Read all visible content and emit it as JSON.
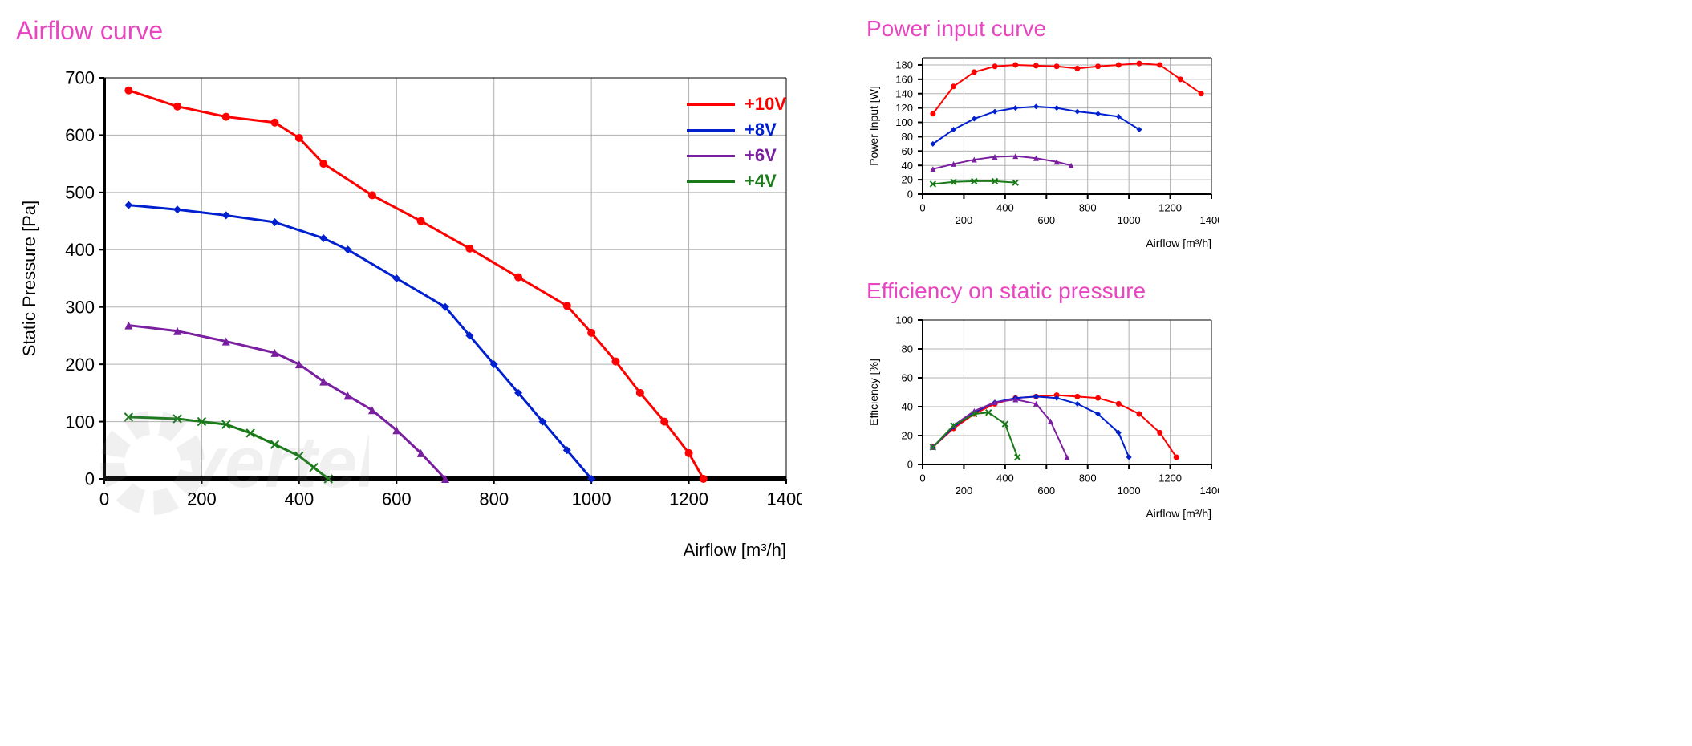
{
  "colors": {
    "title": "#e845c0",
    "axis": "#000000",
    "grid": "#b0b0b0",
    "background": "#ffffff",
    "series": {
      "10V": "#ff0000",
      "8V": "#0020d0",
      "6V": "#7a1fa0",
      "4V": "#1a7a1a"
    }
  },
  "legend": {
    "items": [
      {
        "label": "+10V",
        "color": "#ff0000"
      },
      {
        "label": "+8V",
        "color": "#0020d0"
      },
      {
        "label": "+6V",
        "color": "#7a1fa0"
      },
      {
        "label": "+4V",
        "color": "#1a7a1a"
      }
    ],
    "fontsize": 22
  },
  "airflow_chart": {
    "title": "Airflow curve",
    "type": "line",
    "xlabel": "Airflow [m³/h]",
    "ylabel": "Static Pressure [Pa]",
    "xlim": [
      0,
      1400
    ],
    "ylim": [
      0,
      700
    ],
    "xtick_step": 200,
    "ytick_step": 100,
    "title_fontsize": 32,
    "label_fontsize": 22,
    "tick_fontsize": 22,
    "line_width": 3,
    "marker_size": 5,
    "grid_color": "#b0b0b0",
    "background_color": "#ffffff",
    "series": [
      {
        "name": "+10V",
        "color": "#ff0000",
        "marker": "circle",
        "points": [
          [
            50,
            678
          ],
          [
            150,
            650
          ],
          [
            250,
            632
          ],
          [
            350,
            622
          ],
          [
            400,
            595
          ],
          [
            450,
            550
          ],
          [
            550,
            495
          ],
          [
            650,
            450
          ],
          [
            750,
            402
          ],
          [
            850,
            352
          ],
          [
            950,
            302
          ],
          [
            1000,
            255
          ],
          [
            1050,
            205
          ],
          [
            1100,
            150
          ],
          [
            1150,
            100
          ],
          [
            1200,
            45
          ],
          [
            1230,
            0
          ]
        ]
      },
      {
        "name": "+8V",
        "color": "#0020d0",
        "marker": "diamond",
        "points": [
          [
            50,
            478
          ],
          [
            150,
            470
          ],
          [
            250,
            460
          ],
          [
            350,
            448
          ],
          [
            450,
            420
          ],
          [
            500,
            400
          ],
          [
            600,
            350
          ],
          [
            700,
            300
          ],
          [
            750,
            250
          ],
          [
            800,
            200
          ],
          [
            850,
            150
          ],
          [
            900,
            100
          ],
          [
            950,
            50
          ],
          [
            1000,
            0
          ]
        ]
      },
      {
        "name": "+6V",
        "color": "#7a1fa0",
        "marker": "triangle",
        "points": [
          [
            50,
            268
          ],
          [
            150,
            258
          ],
          [
            250,
            240
          ],
          [
            350,
            220
          ],
          [
            400,
            200
          ],
          [
            450,
            170
          ],
          [
            500,
            145
          ],
          [
            550,
            120
          ],
          [
            600,
            85
          ],
          [
            650,
            45
          ],
          [
            700,
            0
          ]
        ]
      },
      {
        "name": "+4V",
        "color": "#1a7a1a",
        "marker": "x",
        "points": [
          [
            50,
            108
          ],
          [
            150,
            105
          ],
          [
            200,
            100
          ],
          [
            250,
            95
          ],
          [
            300,
            80
          ],
          [
            350,
            60
          ],
          [
            400,
            40
          ],
          [
            430,
            20
          ],
          [
            460,
            0
          ]
        ]
      }
    ]
  },
  "power_chart": {
    "title": "Power input curve",
    "type": "line",
    "xlabel": "Airflow [m³/h]",
    "ylabel": "Power Input [W]",
    "xlim": [
      0,
      1400
    ],
    "ylim": [
      0,
      190
    ],
    "xticks": [
      0,
      200,
      400,
      600,
      800,
      1000,
      1200,
      1400
    ],
    "yticks": [
      0,
      20,
      40,
      60,
      80,
      100,
      120,
      140,
      160,
      180
    ],
    "title_fontsize": 28,
    "label_fontsize": 14,
    "tick_fontsize": 12,
    "line_width": 2,
    "marker_size": 3.5,
    "grid_color": "#b0b0b0",
    "series": [
      {
        "name": "+10V",
        "color": "#ff0000",
        "marker": "circle",
        "points": [
          [
            50,
            112
          ],
          [
            150,
            150
          ],
          [
            250,
            170
          ],
          [
            350,
            178
          ],
          [
            450,
            180
          ],
          [
            550,
            179
          ],
          [
            650,
            178
          ],
          [
            750,
            175
          ],
          [
            850,
            178
          ],
          [
            950,
            180
          ],
          [
            1050,
            182
          ],
          [
            1150,
            180
          ],
          [
            1250,
            160
          ],
          [
            1350,
            140
          ]
        ]
      },
      {
        "name": "+8V",
        "color": "#0020d0",
        "marker": "diamond",
        "points": [
          [
            50,
            70
          ],
          [
            150,
            90
          ],
          [
            250,
            105
          ],
          [
            350,
            115
          ],
          [
            450,
            120
          ],
          [
            550,
            122
          ],
          [
            650,
            120
          ],
          [
            750,
            115
          ],
          [
            850,
            112
          ],
          [
            950,
            108
          ],
          [
            1050,
            90
          ]
        ]
      },
      {
        "name": "+6V",
        "color": "#7a1fa0",
        "marker": "triangle",
        "points": [
          [
            50,
            35
          ],
          [
            150,
            42
          ],
          [
            250,
            48
          ],
          [
            350,
            52
          ],
          [
            450,
            53
          ],
          [
            550,
            50
          ],
          [
            650,
            45
          ],
          [
            720,
            40
          ]
        ]
      },
      {
        "name": "+4V",
        "color": "#1a7a1a",
        "marker": "x",
        "points": [
          [
            50,
            14
          ],
          [
            150,
            17
          ],
          [
            250,
            18
          ],
          [
            350,
            18
          ],
          [
            450,
            16
          ]
        ]
      }
    ]
  },
  "efficiency_chart": {
    "title": "Efficiency on static pressure",
    "type": "line",
    "xlabel": "Airflow [m³/h]",
    "ylabel": "Efficiency [%]",
    "xlim": [
      0,
      1400
    ],
    "ylim": [
      0,
      100
    ],
    "xticks": [
      0,
      200,
      400,
      600,
      800,
      1000,
      1200,
      1400
    ],
    "yticks": [
      0,
      20,
      40,
      60,
      80,
      100
    ],
    "title_fontsize": 28,
    "label_fontsize": 14,
    "tick_fontsize": 12,
    "line_width": 2,
    "marker_size": 3.5,
    "grid_color": "#b0b0b0",
    "series": [
      {
        "name": "+10V",
        "color": "#ff0000",
        "marker": "circle",
        "points": [
          [
            50,
            12
          ],
          [
            150,
            25
          ],
          [
            250,
            35
          ],
          [
            350,
            42
          ],
          [
            450,
            46
          ],
          [
            550,
            47
          ],
          [
            650,
            48
          ],
          [
            750,
            47
          ],
          [
            850,
            46
          ],
          [
            950,
            42
          ],
          [
            1050,
            35
          ],
          [
            1150,
            22
          ],
          [
            1230,
            5
          ]
        ]
      },
      {
        "name": "+8V",
        "color": "#0020d0",
        "marker": "diamond",
        "points": [
          [
            50,
            12
          ],
          [
            150,
            26
          ],
          [
            250,
            36
          ],
          [
            350,
            43
          ],
          [
            450,
            46
          ],
          [
            550,
            47
          ],
          [
            650,
            46
          ],
          [
            750,
            42
          ],
          [
            850,
            35
          ],
          [
            950,
            22
          ],
          [
            1000,
            5
          ]
        ]
      },
      {
        "name": "+6V",
        "color": "#7a1fa0",
        "marker": "triangle",
        "points": [
          [
            50,
            12
          ],
          [
            150,
            27
          ],
          [
            250,
            37
          ],
          [
            350,
            43
          ],
          [
            450,
            45
          ],
          [
            550,
            42
          ],
          [
            620,
            30
          ],
          [
            700,
            5
          ]
        ]
      },
      {
        "name": "+4V",
        "color": "#1a7a1a",
        "marker": "x",
        "points": [
          [
            50,
            12
          ],
          [
            150,
            27
          ],
          [
            250,
            35
          ],
          [
            320,
            36
          ],
          [
            400,
            28
          ],
          [
            460,
            5
          ]
        ]
      }
    ]
  }
}
